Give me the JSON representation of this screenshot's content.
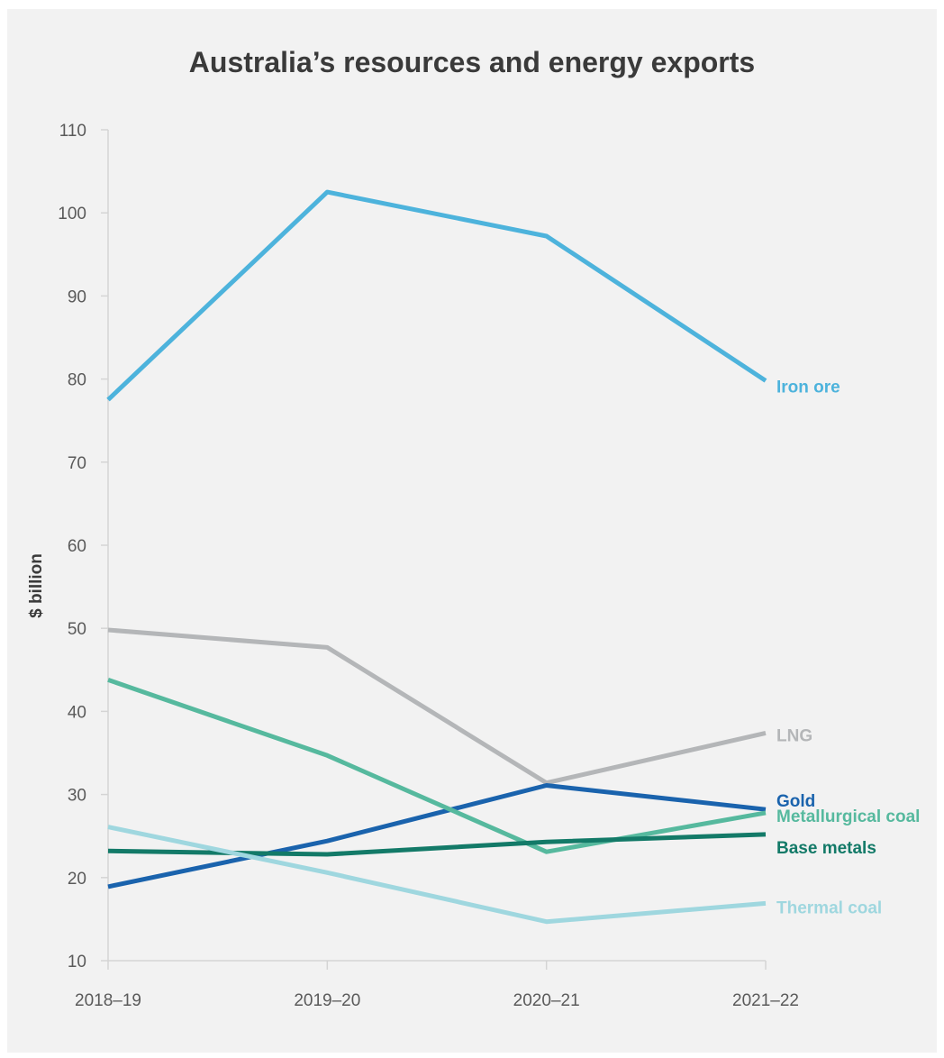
{
  "chart_data": {
    "type": "line",
    "title": "Australia’s resources and energy exports",
    "xlabel": "",
    "ylabel": "$ billion",
    "categories": [
      "2018–19",
      "2019–20",
      "2020–21",
      "2021–22"
    ],
    "ylim": [
      10,
      110
    ],
    "yticks": [
      10,
      20,
      30,
      40,
      50,
      60,
      70,
      80,
      90,
      100,
      110
    ],
    "grid": false,
    "legend": "inline labels at line ends",
    "series": [
      {
        "name": "Iron ore",
        "values": [
          77.5,
          102.5,
          97.2,
          79.8
        ],
        "color": "#4db3dc",
        "width": 5
      },
      {
        "name": "LNG",
        "values": [
          49.8,
          47.7,
          31.4,
          37.4
        ],
        "color": "#b4b6b8",
        "width": 5
      },
      {
        "name": "Gold",
        "values": [
          18.9,
          24.4,
          31.1,
          28.2
        ],
        "color": "#1a63ad",
        "width": 5
      },
      {
        "name": "Metallurgical coal",
        "values": [
          43.8,
          34.7,
          23.1,
          27.8
        ],
        "color": "#56b99e",
        "width": 5
      },
      {
        "name": "Base metals",
        "values": [
          23.2,
          22.8,
          24.3,
          25.2
        ],
        "color": "#137a68",
        "width": 5
      },
      {
        "name": "Thermal coal",
        "values": [
          26.1,
          20.6,
          14.7,
          16.9
        ],
        "color": "#9fd7df",
        "width": 5
      }
    ]
  }
}
